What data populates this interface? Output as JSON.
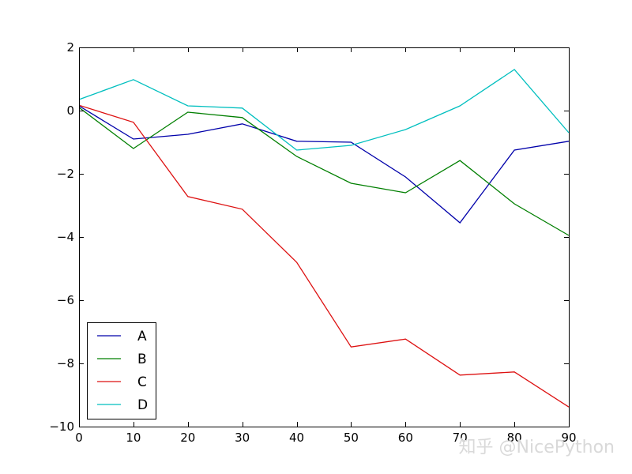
{
  "chart_data": {
    "type": "line",
    "x": [
      0,
      10,
      20,
      30,
      40,
      50,
      60,
      70,
      80,
      90
    ],
    "xlim": [
      0,
      90
    ],
    "ylim": [
      -10,
      2
    ],
    "xticks": [
      0,
      10,
      20,
      30,
      40,
      50,
      60,
      70,
      80,
      90
    ],
    "yticks": [
      2,
      0,
      -2,
      -4,
      -6,
      -8,
      -10
    ],
    "xtick_labels": [
      "0",
      "10",
      "20",
      "30",
      "40",
      "50",
      "60",
      "70",
      "80",
      "90"
    ],
    "ytick_labels": [
      "2",
      "0",
      "−2",
      "−4",
      "−6",
      "−8",
      "−10"
    ],
    "grid": false,
    "legend_position": "lower-left",
    "series": [
      {
        "name": "A",
        "color": "#0000aa",
        "values": [
          0.15,
          -0.9,
          -0.75,
          -0.42,
          -0.97,
          -1.0,
          -2.1,
          -3.55,
          -1.25,
          -0.97
        ]
      },
      {
        "name": "B",
        "color": "#007f00",
        "values": [
          0.1,
          -1.2,
          -0.05,
          -0.22,
          -1.45,
          -2.3,
          -2.6,
          -1.58,
          -2.95,
          -3.95
        ]
      },
      {
        "name": "C",
        "color": "#dd1111",
        "values": [
          0.17,
          -0.37,
          -2.72,
          -3.12,
          -4.8,
          -7.48,
          -7.23,
          -8.37,
          -8.27,
          -9.38
        ]
      },
      {
        "name": "D",
        "color": "#00bfbf",
        "values": [
          0.35,
          0.98,
          0.15,
          0.08,
          -1.25,
          -1.1,
          -0.6,
          0.15,
          1.3,
          -0.7
        ]
      }
    ]
  },
  "watermark": "知乎 @NicePython"
}
